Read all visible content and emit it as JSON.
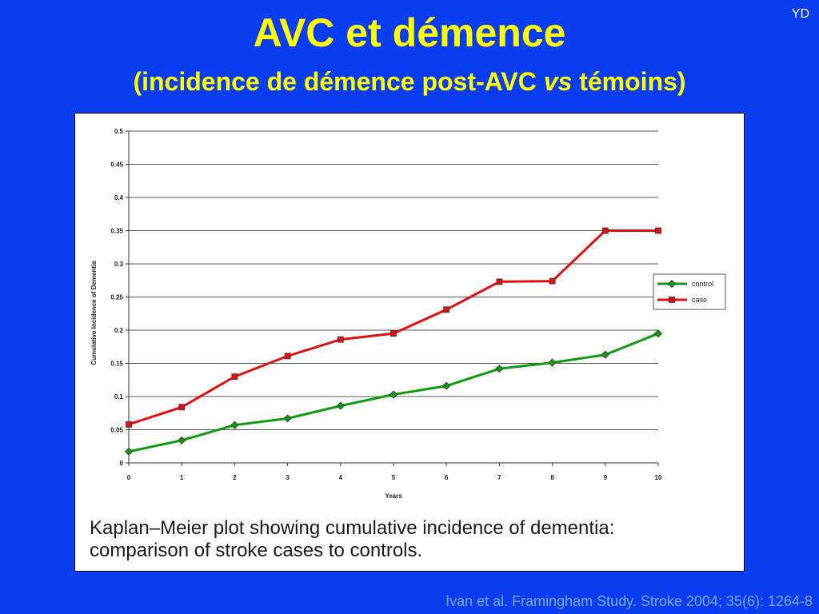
{
  "slide": {
    "corner_label": "YD",
    "title": "AVC et démence",
    "subtitle_before": "(incidence de démence post-AVC ",
    "subtitle_italic": "vs",
    "subtitle_after": " témoins)",
    "caption_line1": "Kaplan–Meier plot showing cumulative incidence of dementia:",
    "caption_line2": "comparison of stroke cases to controls.",
    "citation": "Ivan et al. Framingham Study. Stroke 2004; 35(6): 1264-8",
    "background_color": "#0a3cf0",
    "title_color": "#ffff00"
  },
  "chart_data": {
    "type": "line",
    "title": "",
    "xlabel": "Years",
    "ylabel": "Cumulative Incidence of Dementia",
    "x": [
      0,
      1,
      2,
      3,
      4,
      5,
      6,
      7,
      8,
      9,
      10
    ],
    "xlim": [
      0,
      10
    ],
    "ylim": [
      0,
      0.5
    ],
    "y_ticks": [
      0,
      0.05,
      0.1,
      0.15,
      0.2,
      0.25,
      0.3,
      0.35,
      0.4,
      0.45,
      0.5
    ],
    "y_tick_labels": [
      "0",
      "0.05",
      "0.1",
      "0.15",
      "0.2",
      "0.25",
      "0.3",
      "0.35",
      "0.4",
      "0.45",
      "0.5"
    ],
    "x_tick_labels": [
      "0",
      "1",
      "2",
      "3",
      "4",
      "5",
      "6",
      "7",
      "8",
      "9",
      "10"
    ],
    "grid": true,
    "legend_position": "right",
    "series": [
      {
        "name": "control",
        "color": "#109a10",
        "marker": "diamond",
        "values": [
          0.017,
          0.034,
          0.057,
          0.067,
          0.086,
          0.103,
          0.116,
          0.142,
          0.151,
          0.163,
          0.195
        ]
      },
      {
        "name": "case",
        "color": "#e01010",
        "marker": "square",
        "values": [
          0.058,
          0.084,
          0.13,
          0.161,
          0.186,
          0.195,
          0.231,
          0.273,
          0.274,
          0.35,
          0.35
        ]
      }
    ]
  }
}
